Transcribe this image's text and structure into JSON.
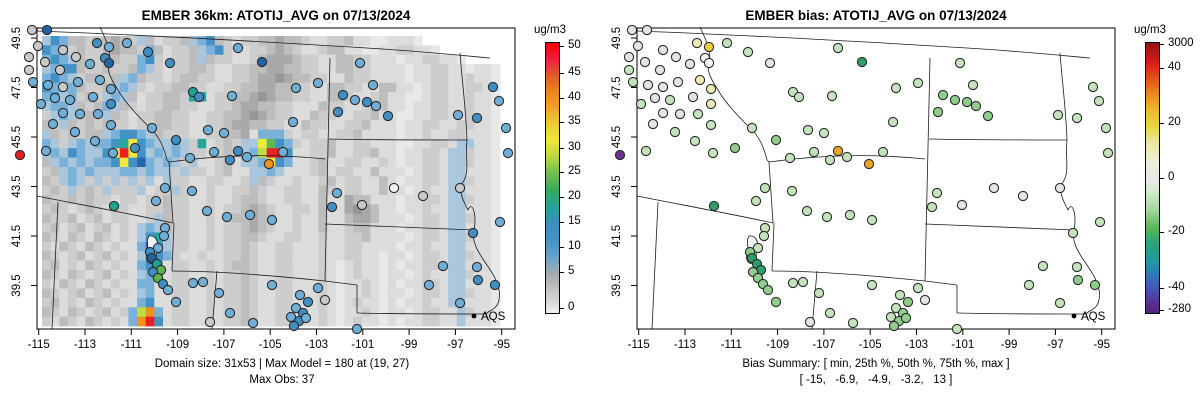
{
  "left_panel": {
    "title": "EMBER 36km: ATOTIJ_AVG on 07/13/2024",
    "caption_line1": "Domain size: 31x53 | Max Model = 180 at (19, 27)",
    "caption_line2": "Max Obs: 37",
    "legend_label": "AQS",
    "colorbar": {
      "units_label": "ug/m3",
      "ticks": [
        [
          "50",
          46
        ],
        [
          "45",
          73
        ],
        [
          "40",
          98
        ],
        [
          "35",
          122
        ],
        [
          "30",
          148
        ],
        [
          "25",
          172
        ],
        [
          "20",
          197
        ],
        [
          "15",
          222
        ],
        [
          "10",
          247
        ],
        [
          "5",
          272
        ],
        [
          "0",
          308
        ]
      ],
      "gradient": [
        [
          0,
          "#f70000"
        ],
        [
          6,
          "#ee1f3e"
        ],
        [
          11,
          "#e2512b"
        ],
        [
          17,
          "#ea7e1e"
        ],
        [
          24,
          "#f0a328"
        ],
        [
          30,
          "#eecb31"
        ],
        [
          36,
          "#f0e73a"
        ],
        [
          42,
          "#bcd93c"
        ],
        [
          48,
          "#72c04c"
        ],
        [
          55,
          "#32aa5e"
        ],
        [
          61,
          "#26a29e"
        ],
        [
          67,
          "#3a90c2"
        ],
        [
          73,
          "#4292c6"
        ],
        [
          78,
          "#5e9fcd"
        ],
        [
          82,
          "#7fa9c0"
        ],
        [
          85,
          "#9fa9af"
        ],
        [
          88,
          "#b4b4b4"
        ],
        [
          94,
          "#cecece"
        ],
        [
          100,
          "#f0f0f0"
        ]
      ]
    }
  },
  "right_panel": {
    "title": "EMBER bias: ATOTIJ_AVG on 07/13/2024",
    "caption_line1": "Bias Summary: [ min, 25th %, 50th %, 75th %, max ]",
    "caption_line2": "[ -15,   -6.9,   -4.9,   -3.2,   13 ]",
    "legend_label": "AQS",
    "colorbar": {
      "units_label": "ug/m3",
      "ticks": [
        [
          "3000",
          44
        ],
        [
          "40",
          68
        ],
        [
          "20",
          123
        ],
        [
          "0",
          178
        ],
        [
          "-20",
          232
        ],
        [
          "-40",
          288
        ],
        [
          "-280",
          310
        ]
      ],
      "gradient": [
        [
          0,
          "#951312"
        ],
        [
          4,
          "#b81815"
        ],
        [
          8,
          "#dd2016"
        ],
        [
          13,
          "#e2511b"
        ],
        [
          19,
          "#eb8a20"
        ],
        [
          25,
          "#edb92c"
        ],
        [
          31,
          "#e7d83e"
        ],
        [
          37,
          "#ede79c"
        ],
        [
          44,
          "#edf0d8"
        ],
        [
          50,
          "#e9e9e9"
        ],
        [
          55,
          "#d3ecce"
        ],
        [
          62,
          "#a2d79c"
        ],
        [
          68,
          "#5dba57"
        ],
        [
          74,
          "#2ca578"
        ],
        [
          80,
          "#23999e"
        ],
        [
          86,
          "#2f78bc"
        ],
        [
          92,
          "#464fb3"
        ],
        [
          97,
          "#5b2b8c"
        ],
        [
          100,
          "#51237f"
        ]
      ]
    }
  },
  "axes": {
    "x_tick_labels": [
      "-115",
      "-113",
      "-111",
      "-109",
      "-107",
      "-105",
      "-103",
      "-101",
      "-99",
      "-97",
      "-95"
    ],
    "y_tick_labels": [
      "49.5",
      "47.5",
      "45.5",
      "43.5",
      "41.5",
      "39.5"
    ]
  },
  "chart_data": {
    "type": "heatmap",
    "description": "Two-panel air quality model evaluation map over the northwestern US (lon -115 to -95, lat 39.5 to 49.5). Left panel: EMBER 36km model field (ug/m3, 0-50 scale) as a gridded raster with AQS site observations as colored circles. Right panel: model bias at AQS sites (ug/m3, -280 to 3000 scale) as colored circles on a plain state map.",
    "domain_size": "31x53",
    "max_model": {
      "value": 180,
      "at": "(19, 27)"
    },
    "max_obs": 37,
    "bias_summary": {
      "labels": [
        "min",
        "25th %",
        "50th %",
        "75th %",
        "max"
      ],
      "values": [
        -15,
        -6.9,
        -4.9,
        -3.2,
        13
      ]
    },
    "model_scale": {
      "units": "ug/m3",
      "ticks": [
        0,
        5,
        10,
        15,
        20,
        25,
        30,
        35,
        40,
        45,
        50
      ]
    },
    "bias_scale": {
      "units": "ug/m3",
      "ticks": [
        -280,
        -40,
        -20,
        0,
        20,
        40,
        3000
      ]
    },
    "grid_palette": {
      ".": "#e8e8e8",
      ",": "#dcdcdc",
      "-": "#cdcdcd",
      "=": "#bdbdbd",
      "#": "#a9a9a9",
      "%": "#979797",
      "s": "#a9c6dc",
      "b": "#79b1d8",
      "B": "#4292c6",
      "D": "#2866ab",
      "t": "#27a59b",
      "g": "#5cb84e",
      "G": "#c3dc44",
      "y": "#f2e73c",
      "o": "#f29022",
      "O": "#db6018",
      "r": "#e81f25"
    },
    "grid_rows": [
      "sBb==--=#=-s=,--=sbB=-,--==#==-,,--=,,..,,,.         ",
      "BbB-=--=#==-b=,--=sbB-,,--=#=-,,-==,,..,,--,,.       ",
      "bBbs=--==--bB-,--=s=--,,-=###=--,,==--,,,.,,--,,.    ",
      "sbBB=--=--=bs-,--==-,,--==##==--,,==--,,,,.,,--,,.,,.",
      "bBbs-==-=sb=--,-==--,,--=##%#==--,,=--,,,,.,,--,,-,,.",
      "Bbbb=--=sbs-,--==--,,--==##==--,,==--,,==,,.,--,,--,.",
      "bBsb-=-sbs=,--==-tt,--==#%#==--,,==-,,-=,,..,--,,-,,.",
      "sbbs=-=bs=-,--==--,,--=##==--,,,=--,,-==,,.,,--,,-,,.",
      "-sbs-=-s=-,--==--,,--==#%#=--,,=--,,--=,,..,,--,,-,,.",
      "=-s=-=-=--,--==--,,--=##==--,,=--,,--=,,,.,,--,,--,,.",
      "s=-=-==sbBBbs=---,,--==#,bbb-,--,,--=,,,,.,,-,,--,,,.",
      "bs-sbsbbBtyBbssbs-t,-=-ssygBb-,--=,,--,,,..,,--,ss,,.",
      "sbsBbssByryBsbsbs--,-=-sbGrrB,,--=,,--=,,.,,--,ss-,,.",
      "=sbsbsbbByBDbsbs-s,,-=,ssbyBb,,-=,,--,,-,.,,--,ss-,,.",
      "-=sbsbsssbbsbss-s--,-=,,ssbs,,,-=,--,,=,,,.,--,ss,,,.",
      "=-sbs-s-s-s-s,s--,,--,,-s=-,,-,,-=,--,,=,.,,--,ss-,,.",
      "-=-s-=-s---s,--s-,,-,,--=-,,--,,=-,--,,=,,.,-,,ss,,,.",
      "=--=-=--,--,--=--,,-,,-==-,,--,,=,,#==,,,.,,--,ss-,,.",
      "-=-,-=-,--,,--=--,,-,--=#=-,,--,=,,#%#=,,.,,-,,ss,,,.",
      "=--=,-=,--,,-s=--,,-,-==#==,,-,,=,,=##=,,,.,--,ss-,,.",
      "-=,-=,-=,-,sbs=--,,-,--=#=-,,-,,=,,-==,,,.,,--,ss,,,.",
      "=-,=-,=-,-,sBts--,,-,--==-,,--,,-,,--=,,,,.,--,ss-,,.",
      "-,=-,=-,-,,bDBs--,,-,--=-,,--,,,-,,--,,,,.,,-,,ss,,,.",
      "=-,-=,-=,-,sBBb-,,-,,--=-,,--,,,-,,--,,.,,.,--,ss-,,.",
      "-=,-,=-,-,,bBb,--,,-,-==-,,--,,,-,.,-,,.,.,,--,ss,,,.",
      "=-,=-,-=,-,sbs,--,,-,--=-,,--,,,-,.,-,,.,,.,-,,ss-,,.",
      "-,=-,=-,-,,bb,,--,,-,--=-,,--,,,-,.,,-,.,.,,--,ss,,,.",
      "=-,-=,-=,-,sb,,--,,-,--=-,,--,,,-,.,,-,.,,.,--,ss-,,.",
      "-=,-,=-,-,,bB,,--,,-,--=-,,--,,,-,.,-,,.,.,,-,,ss,,,.",
      "=-,=-,-=,-bGob,--,,-,--=-,,--,,,-,.,,-,.,,.,--,,s-,,.",
      "-,=-,=-,-,borB,--,,-,--=-,,--,,,-,.,-,,.,.,,--,,s,,,."
    ],
    "obs_dot_palette": {
      "gy": "#c9c9c9",
      "w": "#f2f2f2",
      "b": "#6faed6",
      "B": "#3f8fc5",
      "D": "#2263a5",
      "t": "#21a393",
      "g": "#59b64d",
      "o": "#ef9420",
      "r": "#e51d23"
    },
    "bias_dot_palette": {
      "gy": "#e4e4e4",
      "w": "#f7f7f7",
      "lg": "#c4e3bd",
      "g": "#90cc8a",
      "G": "#2f9e68",
      "y": "#eee8b2",
      "Y": "#eccc3e",
      "o": "#eda427",
      "p": "#6a3390"
    },
    "sites": [
      [
        32,
        30,
        "gy",
        "gy"
      ],
      [
        47,
        30,
        "D",
        "gy"
      ],
      [
        97,
        43,
        "B",
        "y"
      ],
      [
        109,
        47,
        "b",
        "Y"
      ],
      [
        38,
        46,
        "gy",
        "gy"
      ],
      [
        63,
        50,
        "gy",
        "gy"
      ],
      [
        29,
        57,
        "gy",
        "gy"
      ],
      [
        76,
        57,
        "gy",
        "gy"
      ],
      [
        45,
        62,
        "gy",
        "gy"
      ],
      [
        29,
        70,
        "gy",
        "lg"
      ],
      [
        60,
        70,
        "gy",
        "gy"
      ],
      [
        90,
        64,
        "b",
        "gy"
      ],
      [
        105,
        58,
        "B",
        "w"
      ],
      [
        109,
        63,
        "D",
        "w"
      ],
      [
        33,
        82,
        "b",
        "lg"
      ],
      [
        48,
        85,
        "b",
        "gy"
      ],
      [
        63,
        87,
        "gy",
        "gy"
      ],
      [
        78,
        82,
        "b",
        "gy"
      ],
      [
        100,
        80,
        "b",
        "y"
      ],
      [
        111,
        89,
        "b",
        "y"
      ],
      [
        93,
        97,
        "b",
        "gy"
      ],
      [
        55,
        98,
        "b",
        "gy"
      ],
      [
        70,
        100,
        "b",
        "lg"
      ],
      [
        41,
        104,
        "b",
        "lg"
      ],
      [
        111,
        104,
        "B",
        "y"
      ],
      [
        63,
        113,
        "b",
        "gy"
      ],
      [
        80,
        114,
        "b",
        "gy"
      ],
      [
        98,
        114,
        "b",
        "lg"
      ],
      [
        53,
        124,
        "b",
        "gy"
      ],
      [
        111,
        125,
        "b",
        "lg"
      ],
      [
        75,
        132,
        "b",
        "lg"
      ],
      [
        95,
        141,
        "b",
        "lg"
      ],
      [
        46,
        151,
        "b",
        "lg"
      ],
      [
        113,
        153,
        "b",
        "lg"
      ],
      [
        20,
        155,
        "r",
        "p"
      ],
      [
        127,
        43,
        "b",
        "lg"
      ],
      [
        148,
        52,
        "B",
        "lg"
      ],
      [
        170,
        63,
        "B",
        "gy"
      ],
      [
        238,
        48,
        "b",
        "lg"
      ],
      [
        262,
        62,
        "D",
        "G"
      ],
      [
        193,
        92,
        "t",
        "lg"
      ],
      [
        199,
        97,
        "B",
        "lg"
      ],
      [
        232,
        96,
        "b",
        "lg"
      ],
      [
        296,
        88,
        "b",
        "lg"
      ],
      [
        360,
        63,
        "b",
        "lg"
      ],
      [
        318,
        83,
        "b",
        "lg"
      ],
      [
        373,
        85,
        "b",
        "lg"
      ],
      [
        343,
        95,
        "B",
        "g"
      ],
      [
        355,
        100,
        "b",
        "g"
      ],
      [
        367,
        102,
        "B",
        "g"
      ],
      [
        376,
        106,
        "b",
        "g"
      ],
      [
        388,
        116,
        "B",
        "g"
      ],
      [
        338,
        112,
        "B",
        "g"
      ],
      [
        293,
        122,
        "b",
        "lg"
      ],
      [
        458,
        115,
        "b",
        "lg"
      ],
      [
        477,
        118,
        "B",
        "lg"
      ],
      [
        493,
        87,
        "B",
        "lg"
      ],
      [
        506,
        128,
        "b",
        "lg"
      ],
      [
        508,
        153,
        "b",
        "lg"
      ],
      [
        499,
        101,
        "b",
        "lg"
      ],
      [
        152,
        128,
        "b",
        "lg"
      ],
      [
        176,
        140,
        "B",
        "g"
      ],
      [
        208,
        130,
        "b",
        "lg"
      ],
      [
        224,
        133,
        "b",
        "lg"
      ],
      [
        165,
        188,
        "b",
        "lg"
      ],
      [
        192,
        191,
        "b",
        "lg"
      ],
      [
        156,
        201,
        "b",
        "lg"
      ],
      [
        207,
        211,
        "b",
        "lg"
      ],
      [
        227,
        217,
        "b",
        "lg"
      ],
      [
        250,
        215,
        "b",
        "lg"
      ],
      [
        272,
        220,
        "b",
        "lg"
      ],
      [
        165,
        228,
        "b",
        "lg"
      ],
      [
        164,
        236,
        "b",
        "lg"
      ],
      [
        158,
        248,
        "b",
        "lg"
      ],
      [
        190,
        158,
        "b",
        "lg"
      ],
      [
        214,
        152,
        "b",
        "lg"
      ],
      [
        230,
        160,
        "B",
        "lg"
      ],
      [
        247,
        157,
        "b",
        "lg"
      ],
      [
        238,
        151,
        "B",
        "o"
      ],
      [
        269,
        164,
        "o",
        "o"
      ],
      [
        283,
        152,
        "b",
        "lg"
      ],
      [
        135,
        148,
        "B",
        "g"
      ],
      [
        114,
        206,
        "t",
        "G"
      ],
      [
        150,
        252,
        "B",
        "g"
      ],
      [
        152,
        258,
        "D",
        "G"
      ],
      [
        157,
        264,
        "t",
        "G"
      ],
      [
        161,
        270,
        "g",
        "G"
      ],
      [
        153,
        272,
        "B",
        "g"
      ],
      [
        158,
        278,
        "g",
        "g"
      ],
      [
        163,
        284,
        "B",
        "g"
      ],
      [
        168,
        290,
        "b",
        "g"
      ],
      [
        193,
        283,
        "b",
        "lg"
      ],
      [
        203,
        282,
        "b",
        "lg"
      ],
      [
        176,
        302,
        "b",
        "g"
      ],
      [
        219,
        293,
        "b",
        "lg"
      ],
      [
        230,
        313,
        "b",
        "lg"
      ],
      [
        210,
        322,
        "gy",
        "gy"
      ],
      [
        253,
        323,
        "b",
        "lg"
      ],
      [
        272,
        285,
        "b",
        "lg"
      ],
      [
        394,
        188,
        "w",
        "gy"
      ],
      [
        337,
        193,
        "b",
        "lg"
      ],
      [
        332,
        207,
        "B",
        "lg"
      ],
      [
        362,
        205,
        "gy",
        "gy"
      ],
      [
        423,
        196,
        "gy",
        "gy"
      ],
      [
        429,
        285,
        "b",
        "lg"
      ],
      [
        460,
        303,
        "b",
        "lg"
      ],
      [
        500,
        222,
        "b",
        "lg"
      ],
      [
        473,
        233,
        "B",
        "lg"
      ],
      [
        477,
        267,
        "b",
        "lg"
      ],
      [
        478,
        280,
        "B",
        "g"
      ],
      [
        495,
        285,
        "B",
        "g"
      ],
      [
        460,
        188,
        "gy",
        "gy"
      ],
      [
        357,
        329,
        "b",
        "lg"
      ],
      [
        443,
        266,
        "b",
        "lg"
      ],
      [
        300,
        295,
        "b",
        "lg"
      ],
      [
        308,
        302,
        "B",
        "g"
      ],
      [
        296,
        308,
        "b",
        "lg"
      ],
      [
        303,
        313,
        "B",
        "g"
      ],
      [
        291,
        317,
        "b",
        "lg"
      ],
      [
        299,
        321,
        "B",
        "g"
      ],
      [
        306,
        318,
        "b",
        "g"
      ],
      [
        294,
        326,
        "B",
        "g"
      ],
      [
        318,
        288,
        "b",
        "lg"
      ],
      [
        325,
        300,
        "gy",
        "gy"
      ]
    ]
  }
}
